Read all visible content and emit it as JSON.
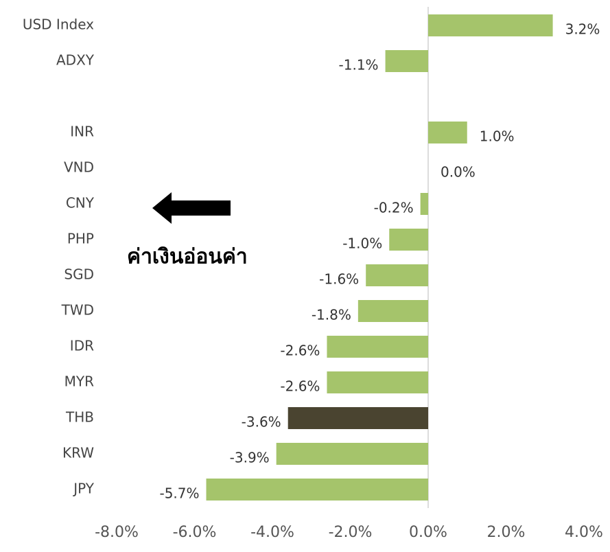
{
  "chart_data": {
    "type": "hbar",
    "categories": [
      "USD Index",
      "ADXY",
      null,
      "INR",
      "VND",
      "CNY",
      "PHP",
      "SGD",
      "TWD",
      "IDR",
      "MYR",
      "THB",
      "KRW",
      "JPY"
    ],
    "values": [
      3.2,
      -1.1,
      null,
      1.0,
      0.0,
      -0.2,
      -1.0,
      -1.6,
      -1.8,
      -2.6,
      -2.6,
      -3.6,
      -3.9,
      -5.7
    ],
    "value_labels": [
      "3.2%",
      "-1.1%",
      null,
      "1.0%",
      "0.0%",
      "-0.2%",
      "-1.0%",
      "-1.6%",
      "-1.8%",
      "-2.6%",
      "-2.6%",
      "-3.6%",
      "-3.9%",
      "-5.7%"
    ],
    "colors": [
      "#a5c46b",
      "#a5c46b",
      null,
      "#a5c46b",
      "#a5c46b",
      "#a5c46b",
      "#a5c46b",
      "#a5c46b",
      "#a5c46b",
      "#a5c46b",
      "#a5c46b",
      "#4a4430",
      "#a5c46b",
      "#a5c46b"
    ],
    "xlim": [
      -8,
      4
    ],
    "xticks": [
      {
        "value": -8,
        "label": "-8.0%"
      },
      {
        "value": -6,
        "label": "-6.0%"
      },
      {
        "value": -4,
        "label": "-4.0%"
      },
      {
        "value": -2,
        "label": "-2.0%"
      },
      {
        "value": 0,
        "label": "0.0%"
      },
      {
        "value": 2,
        "label": "2.0%"
      },
      {
        "value": 4,
        "label": "4.0%"
      }
    ],
    "annotation": "ค่าเงินอ่อนค่า"
  }
}
